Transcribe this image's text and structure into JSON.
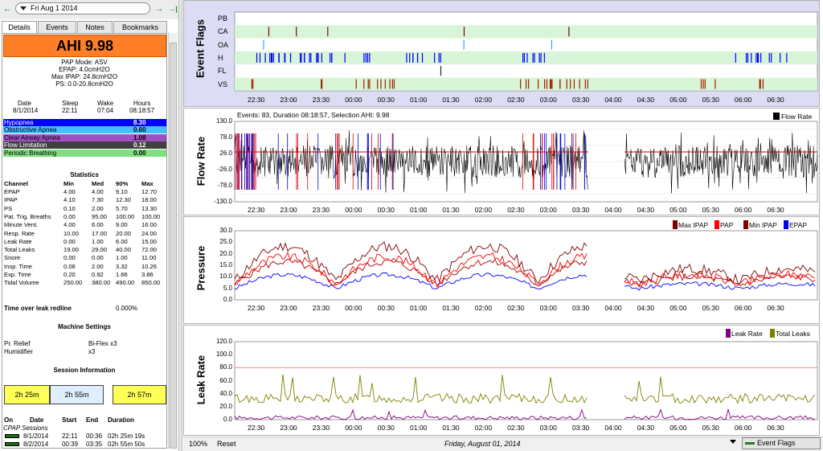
{
  "nav": {
    "back_icon": "←",
    "date": "Fri Aug 1 2014",
    "forward_icon": "→",
    "end_icon": "→|"
  },
  "tabs": [
    "Details",
    "Events",
    "Notes",
    "Bookmarks"
  ],
  "summary": {
    "ahi": "AHI 9.98",
    "pap_mode": "PAP Mode: ASV",
    "epap": "EPAP: 4.0cmH2O",
    "max_ipap": "Max IPAP: 24.8cmH2O",
    "ps": "PS: 0.0-20.8cmH2O"
  },
  "session_header": {
    "date": "Date",
    "sleep": "Sleep",
    "wake": "Wake",
    "hours": "Hours"
  },
  "session_values": {
    "date": "8/1/2014",
    "sleep": "22:11",
    "wake": "07:04",
    "hours": "08:18:57"
  },
  "indices": [
    {
      "label": "Hypopnea",
      "value": "8.30",
      "color": "#0000ff",
      "text": "#ffffff"
    },
    {
      "label": "Obstructive Apnea",
      "value": "0.60",
      "color": "#40c0ff",
      "text": "#000000"
    },
    {
      "label": "Clear Airway Apnea",
      "value": "1.08",
      "color": "#a050c0",
      "text": "#000000"
    },
    {
      "label": "Flow Limitation",
      "value": "0.12",
      "color": "#404040",
      "text": "#ffffff"
    },
    {
      "label": "Periodic Breathing",
      "value": "0.00",
      "color": "#80e080",
      "text": "#000000"
    }
  ],
  "statistics": {
    "title": "Statistics",
    "headers": [
      "Channel",
      "Min",
      "Med",
      "90%",
      "Max"
    ],
    "rows": [
      [
        "EPAP",
        "4.00",
        "4.00",
        "9.10",
        "12.70"
      ],
      [
        "IPAP",
        "4.10",
        "7.30",
        "12.30",
        "18.00"
      ],
      [
        "PS",
        "0.10",
        "2.00",
        "5.70",
        "13.30"
      ],
      [
        "Pat. Trig. Breaths",
        "0.00",
        "95.00",
        "100.00",
        "100.00"
      ],
      [
        "Minute Vent.",
        "4.00",
        "6.00",
        "9.00",
        "16.00"
      ],
      [
        "Resp. Rate",
        "10.00",
        "17.00",
        "20.00",
        "24.00"
      ],
      [
        "Leak Rate",
        "0.00",
        "1.00",
        "6.00",
        "15.00"
      ],
      [
        "Total Leaks",
        "19.00",
        "29.00",
        "40.00",
        "72.00"
      ],
      [
        "Snore",
        "0.00",
        "0.00",
        "1.00",
        "11.00"
      ],
      [
        "Insp. Time",
        "0.06",
        "2.00",
        "3.32",
        "10.26"
      ],
      [
        "Exp. Time",
        "0.20",
        "0.92",
        "1.66",
        "3.86"
      ],
      [
        "Tidal Volume",
        "250.00",
        "380.00",
        "490.00",
        "850.00"
      ]
    ]
  },
  "leak_redline": {
    "label": "Time over leak redline",
    "value": "0.000%"
  },
  "machine": {
    "title": "Machine Settings",
    "rows": [
      [
        "Pr. Relief",
        "Bi-Flex x3"
      ],
      [
        "Humidifier",
        "x3"
      ]
    ]
  },
  "session_info": {
    "title": "Session Information",
    "boxes": [
      "2h 25m",
      "2h 55m",
      "2h 57m"
    ],
    "headers": [
      "On",
      "Date",
      "Start",
      "End",
      "Duration"
    ],
    "group": "CPAP Sessions",
    "rows": [
      [
        "8/1/2014",
        "22:11",
        "00:36",
        "02h 25m 19s"
      ],
      [
        "8/2/2014",
        "00:39",
        "03:35",
        "02h 55m 50s"
      ]
    ]
  },
  "graphs": {
    "event_flags": {
      "title": "Event Flags",
      "rows": [
        "PB",
        "CA",
        "OA",
        "H",
        "FL",
        "VS"
      ]
    },
    "flow_rate": {
      "title": "Flow Rate",
      "info": "Events: 83, Duration 08:18:57, Selection AHI: 9.98",
      "legend": "Flow Rate",
      "yticks": [
        "130.0",
        "78.0",
        "26.0",
        "-26.0",
        "-78.0",
        "-130.0"
      ]
    },
    "pressure": {
      "title": "Pressure",
      "legend": [
        "Max IPAP",
        "PAP",
        "Min IPAP",
        "EPAP"
      ],
      "yticks": [
        "30.0",
        "25.0",
        "20.0",
        "15.0",
        "10.0",
        "5.0",
        "0.0"
      ]
    },
    "leak_rate": {
      "title": "Leak Rate",
      "legend": [
        "Leak Rate",
        "Total Leaks"
      ],
      "yticks": [
        "120.0",
        "100.0",
        "80.0",
        "60.0",
        "40.0",
        "20.0",
        "0.0"
      ]
    },
    "xticks": [
      "22:30",
      "23:00",
      "23:30",
      "00:00",
      "00:30",
      "01:00",
      "01:30",
      "02:00",
      "02:30",
      "03:00",
      "03:30",
      "04:00",
      "04:30",
      "05:00",
      "05:30",
      "06:00",
      "06:30"
    ]
  },
  "bottom": {
    "zoom": "100%",
    "reset": "Reset",
    "date": "Friday, August 01, 2014",
    "layout": "Event Flags"
  },
  "colors": {
    "accent_orange": "#ff7f27",
    "graph_bg": "#ffffff",
    "row_green": "#d6f5d6",
    "header_bg": "#e0e0f8"
  }
}
